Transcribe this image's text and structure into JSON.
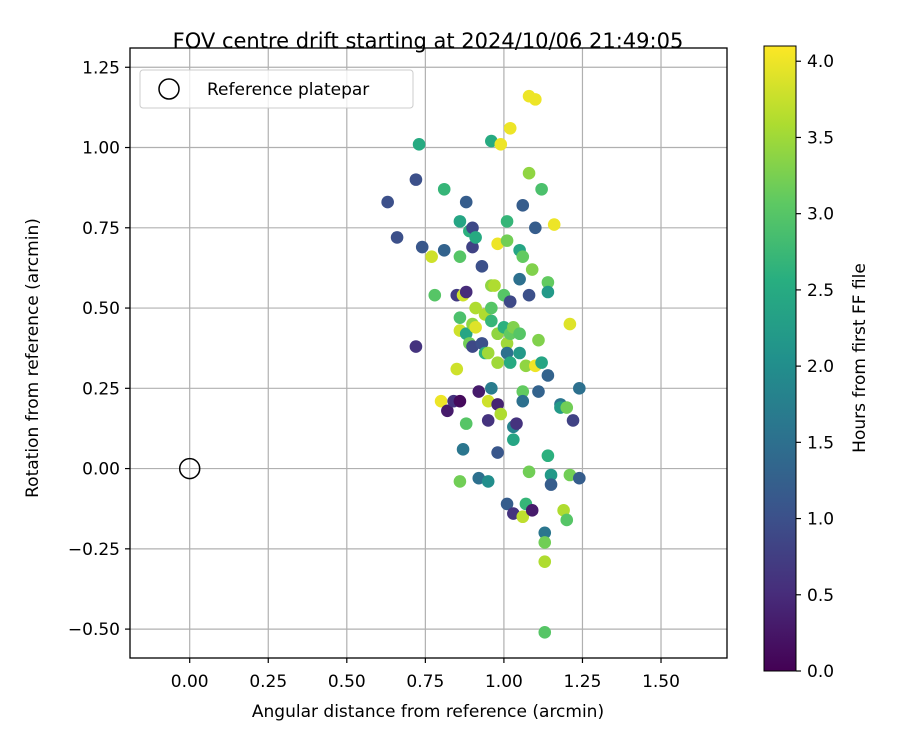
{
  "chart_data": {
    "type": "scatter",
    "title": "FOV centre drift starting at 2024/10/06 21:49:05",
    "xlabel": "Angular distance from reference (arcmin)",
    "ylabel": "Rotation from reference (arcmin)",
    "xlim": [
      -0.19,
      1.71
    ],
    "ylim": [
      -0.59,
      1.31
    ],
    "x_ticks": [
      0.0,
      0.25,
      0.5,
      0.75,
      1.0,
      1.25,
      1.5
    ],
    "x_tick_labels": [
      "0.00",
      "0.25",
      "0.50",
      "0.75",
      "1.00",
      "1.25",
      "1.50"
    ],
    "y_ticks": [
      -0.5,
      -0.25,
      0.0,
      0.25,
      0.5,
      0.75,
      1.0,
      1.25
    ],
    "y_tick_labels": [
      "−0.50",
      "−0.25",
      "0.00",
      "0.25",
      "0.50",
      "0.75",
      "1.00",
      "1.25"
    ],
    "grid": true,
    "legend": {
      "placement": "top-left",
      "entries": [
        "Reference platepar"
      ]
    },
    "reference_point": {
      "x": 0.0,
      "y": 0.0,
      "label": "Reference platepar"
    },
    "colorbar": {
      "label": "Hours from first FF file",
      "range": [
        0.0,
        4.1
      ],
      "ticks": [
        0.0,
        0.5,
        1.0,
        1.5,
        2.0,
        2.5,
        3.0,
        3.5,
        4.0
      ],
      "tick_labels": [
        "0.0",
        "0.5",
        "1.0",
        "1.5",
        "2.0",
        "2.5",
        "3.0",
        "3.5",
        "4.0"
      ],
      "colormap": "viridis"
    },
    "points": [
      {
        "x": 0.63,
        "y": 0.83,
        "c": 1.0
      },
      {
        "x": 0.66,
        "y": 0.72,
        "c": 1.0
      },
      {
        "x": 0.72,
        "y": 0.9,
        "c": 1.0
      },
      {
        "x": 0.72,
        "y": 0.38,
        "c": 0.6
      },
      {
        "x": 0.73,
        "y": 1.01,
        "c": 2.5
      },
      {
        "x": 0.74,
        "y": 0.69,
        "c": 1.1
      },
      {
        "x": 0.77,
        "y": 0.66,
        "c": 3.8
      },
      {
        "x": 0.78,
        "y": 0.54,
        "c": 3.0
      },
      {
        "x": 0.8,
        "y": 0.21,
        "c": 4.0
      },
      {
        "x": 0.81,
        "y": 0.87,
        "c": 2.7
      },
      {
        "x": 0.81,
        "y": 0.68,
        "c": 1.3
      },
      {
        "x": 0.82,
        "y": 0.18,
        "c": 0.3
      },
      {
        "x": 0.84,
        "y": 0.21,
        "c": 0.6
      },
      {
        "x": 0.85,
        "y": 0.54,
        "c": 0.7
      },
      {
        "x": 0.85,
        "y": 0.31,
        "c": 3.8
      },
      {
        "x": 0.86,
        "y": 0.77,
        "c": 2.4
      },
      {
        "x": 0.86,
        "y": 0.66,
        "c": 3.0
      },
      {
        "x": 0.86,
        "y": 0.47,
        "c": 2.9
      },
      {
        "x": 0.86,
        "y": 0.43,
        "c": 3.8
      },
      {
        "x": 0.86,
        "y": 0.21,
        "c": 0.1
      },
      {
        "x": 0.86,
        "y": -0.04,
        "c": 3.2
      },
      {
        "x": 0.87,
        "y": 0.54,
        "c": 3.8
      },
      {
        "x": 0.87,
        "y": 0.06,
        "c": 1.6
      },
      {
        "x": 0.88,
        "y": 0.83,
        "c": 1.2
      },
      {
        "x": 0.88,
        "y": 0.55,
        "c": 0.5
      },
      {
        "x": 0.88,
        "y": 0.42,
        "c": 2.4
      },
      {
        "x": 0.88,
        "y": 0.14,
        "c": 3.0
      },
      {
        "x": 0.89,
        "y": 0.74,
        "c": 2.6
      },
      {
        "x": 0.89,
        "y": 0.39,
        "c": 3.2
      },
      {
        "x": 0.9,
        "y": 0.75,
        "c": 0.9
      },
      {
        "x": 0.9,
        "y": 0.69,
        "c": 0.8
      },
      {
        "x": 0.9,
        "y": 0.45,
        "c": 3.4
      },
      {
        "x": 0.9,
        "y": 0.38,
        "c": 0.9
      },
      {
        "x": 0.91,
        "y": 0.72,
        "c": 2.5
      },
      {
        "x": 0.91,
        "y": 0.5,
        "c": 3.6
      },
      {
        "x": 0.91,
        "y": 0.44,
        "c": 3.9
      },
      {
        "x": 0.92,
        "y": 0.24,
        "c": 0.3
      },
      {
        "x": 0.92,
        "y": -0.03,
        "c": 1.5
      },
      {
        "x": 0.93,
        "y": 0.63,
        "c": 1.0
      },
      {
        "x": 0.93,
        "y": 0.39,
        "c": 1.0
      },
      {
        "x": 0.94,
        "y": 0.48,
        "c": 3.6
      },
      {
        "x": 0.94,
        "y": 0.36,
        "c": 2.6
      },
      {
        "x": 0.95,
        "y": 0.21,
        "c": 3.8
      },
      {
        "x": 0.95,
        "y": 0.15,
        "c": 0.6
      },
      {
        "x": 0.95,
        "y": 0.36,
        "c": 3.5
      },
      {
        "x": 0.95,
        "y": -0.04,
        "c": 2.0
      },
      {
        "x": 0.96,
        "y": 0.57,
        "c": 3.4
      },
      {
        "x": 0.96,
        "y": 0.5,
        "c": 3.0
      },
      {
        "x": 0.96,
        "y": 0.46,
        "c": 2.7
      },
      {
        "x": 0.96,
        "y": 0.25,
        "c": 1.7
      },
      {
        "x": 0.96,
        "y": 1.02,
        "c": 2.5
      },
      {
        "x": 0.97,
        "y": 0.57,
        "c": 3.6
      },
      {
        "x": 0.98,
        "y": 0.7,
        "c": 4.0
      },
      {
        "x": 0.98,
        "y": 0.42,
        "c": 3.4
      },
      {
        "x": 0.98,
        "y": 0.33,
        "c": 3.5
      },
      {
        "x": 0.98,
        "y": 0.2,
        "c": 0.4
      },
      {
        "x": 0.98,
        "y": 0.05,
        "c": 1.1
      },
      {
        "x": 0.99,
        "y": 1.01,
        "c": 4.0
      },
      {
        "x": 0.99,
        "y": 0.17,
        "c": 3.6
      },
      {
        "x": 1.0,
        "y": 0.54,
        "c": 3.0
      },
      {
        "x": 1.0,
        "y": 0.44,
        "c": 2.6
      },
      {
        "x": 1.01,
        "y": 0.77,
        "c": 2.7
      },
      {
        "x": 1.01,
        "y": 0.71,
        "c": 3.2
      },
      {
        "x": 1.01,
        "y": 0.39,
        "c": 3.5
      },
      {
        "x": 1.01,
        "y": 0.36,
        "c": 1.5
      },
      {
        "x": 1.01,
        "y": -0.11,
        "c": 1.2
      },
      {
        "x": 1.02,
        "y": 1.06,
        "c": 4.0
      },
      {
        "x": 1.02,
        "y": 0.52,
        "c": 0.9
      },
      {
        "x": 1.02,
        "y": 0.42,
        "c": 3.1
      },
      {
        "x": 1.02,
        "y": 0.33,
        "c": 2.5
      },
      {
        "x": 1.03,
        "y": 0.44,
        "c": 3.3
      },
      {
        "x": 1.03,
        "y": 0.13,
        "c": 1.8
      },
      {
        "x": 1.03,
        "y": 0.09,
        "c": 2.4
      },
      {
        "x": 1.03,
        "y": -0.14,
        "c": 0.6
      },
      {
        "x": 1.04,
        "y": 0.14,
        "c": 0.6
      },
      {
        "x": 1.05,
        "y": 0.68,
        "c": 2.4
      },
      {
        "x": 1.05,
        "y": 0.59,
        "c": 1.5
      },
      {
        "x": 1.05,
        "y": 0.42,
        "c": 3.0
      },
      {
        "x": 1.05,
        "y": 0.36,
        "c": 2.2
      },
      {
        "x": 1.06,
        "y": 0.82,
        "c": 1.2
      },
      {
        "x": 1.06,
        "y": 0.66,
        "c": 3.1
      },
      {
        "x": 1.06,
        "y": 0.24,
        "c": 3.1
      },
      {
        "x": 1.06,
        "y": 0.21,
        "c": 1.5
      },
      {
        "x": 1.06,
        "y": -0.15,
        "c": 3.7
      },
      {
        "x": 1.07,
        "y": 0.32,
        "c": 3.4
      },
      {
        "x": 1.07,
        "y": -0.11,
        "c": 2.7
      },
      {
        "x": 1.08,
        "y": 1.16,
        "c": 4.0
      },
      {
        "x": 1.08,
        "y": 0.92,
        "c": 3.4
      },
      {
        "x": 1.08,
        "y": 0.54,
        "c": 1.0
      },
      {
        "x": 1.08,
        "y": -0.01,
        "c": 3.2
      },
      {
        "x": 1.09,
        "y": 0.62,
        "c": 3.3
      },
      {
        "x": 1.09,
        "y": -0.13,
        "c": 0.3
      },
      {
        "x": 1.1,
        "y": 1.15,
        "c": 4.0
      },
      {
        "x": 1.1,
        "y": 0.75,
        "c": 1.2
      },
      {
        "x": 1.1,
        "y": 0.32,
        "c": 4.0
      },
      {
        "x": 1.11,
        "y": 0.4,
        "c": 3.3
      },
      {
        "x": 1.11,
        "y": 0.24,
        "c": 1.3
      },
      {
        "x": 1.12,
        "y": 0.87,
        "c": 2.9
      },
      {
        "x": 1.12,
        "y": 0.33,
        "c": 2.4
      },
      {
        "x": 1.13,
        "y": -0.2,
        "c": 1.6
      },
      {
        "x": 1.13,
        "y": -0.23,
        "c": 3.2
      },
      {
        "x": 1.13,
        "y": -0.29,
        "c": 3.6
      },
      {
        "x": 1.13,
        "y": -0.51,
        "c": 3.0
      },
      {
        "x": 1.14,
        "y": 0.58,
        "c": 3.1
      },
      {
        "x": 1.14,
        "y": 0.55,
        "c": 2.2
      },
      {
        "x": 1.14,
        "y": 0.29,
        "c": 1.3
      },
      {
        "x": 1.14,
        "y": 0.04,
        "c": 2.6
      },
      {
        "x": 1.15,
        "y": -0.02,
        "c": 2.2
      },
      {
        "x": 1.15,
        "y": -0.05,
        "c": 1.2
      },
      {
        "x": 1.16,
        "y": 0.76,
        "c": 4.0
      },
      {
        "x": 1.18,
        "y": 0.2,
        "c": 1.6
      },
      {
        "x": 1.18,
        "y": 0.19,
        "c": 2.2
      },
      {
        "x": 1.19,
        "y": -0.13,
        "c": 3.6
      },
      {
        "x": 1.2,
        "y": 0.19,
        "c": 3.2
      },
      {
        "x": 1.2,
        "y": -0.16,
        "c": 3.0
      },
      {
        "x": 1.21,
        "y": 0.45,
        "c": 3.9
      },
      {
        "x": 1.21,
        "y": -0.02,
        "c": 3.2
      },
      {
        "x": 1.22,
        "y": 0.15,
        "c": 0.8
      },
      {
        "x": 1.24,
        "y": 0.25,
        "c": 1.5
      },
      {
        "x": 1.24,
        "y": -0.03,
        "c": 1.2
      }
    ]
  }
}
